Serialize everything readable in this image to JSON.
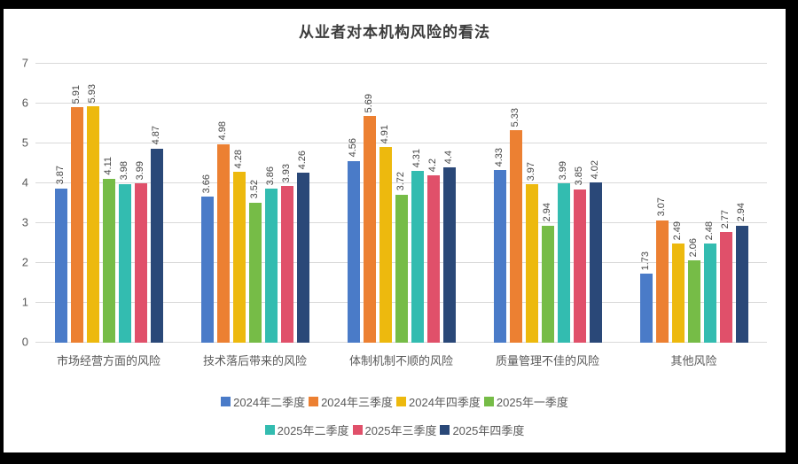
{
  "frame": {
    "border_color": "#000000",
    "background_color": "#ffffff"
  },
  "chart_data": {
    "type": "bar",
    "title": "从业者对本机构风险的看法",
    "categories": [
      "市场经营方面的风险",
      "技术落后带来的风险",
      "体制机制不顺的风险",
      "质量管理不佳的风险",
      "其他风险"
    ],
    "series": [
      {
        "name": "2024年二季度",
        "color": "#4A7BC8",
        "values": [
          3.87,
          3.66,
          4.56,
          4.33,
          1.73
        ]
      },
      {
        "name": "2024年三季度",
        "color": "#EC8032",
        "values": [
          5.91,
          4.98,
          5.69,
          5.33,
          3.07
        ]
      },
      {
        "name": "2024年四季度",
        "color": "#EDB90E",
        "values": [
          5.93,
          4.28,
          4.91,
          3.97,
          2.49
        ]
      },
      {
        "name": "2025年一季度",
        "color": "#76BC47",
        "values": [
          4.11,
          3.52,
          3.72,
          2.94,
          2.06
        ]
      },
      {
        "name": "2025年二季度",
        "color": "#33BCB0",
        "values": [
          3.98,
          3.86,
          4.31,
          3.99,
          2.48
        ]
      },
      {
        "name": "2025年三季度",
        "color": "#E0506A",
        "values": [
          3.99,
          3.93,
          4.2,
          3.85,
          2.77
        ]
      },
      {
        "name": "2025年四季度",
        "color": "#2A4878",
        "values": [
          4.87,
          4.26,
          4.4,
          4.02,
          2.94
        ]
      }
    ],
    "ylim": [
      0,
      7
    ],
    "yticks": [
      0,
      1,
      2,
      3,
      4,
      5,
      6,
      7
    ],
    "grid": true,
    "gridline_color": "#d9d9d9",
    "data_labels": true,
    "data_label_rotation": "vertical",
    "legend_position": "bottom",
    "legend_row_split": 4,
    "axis_label_color": "#595959"
  }
}
